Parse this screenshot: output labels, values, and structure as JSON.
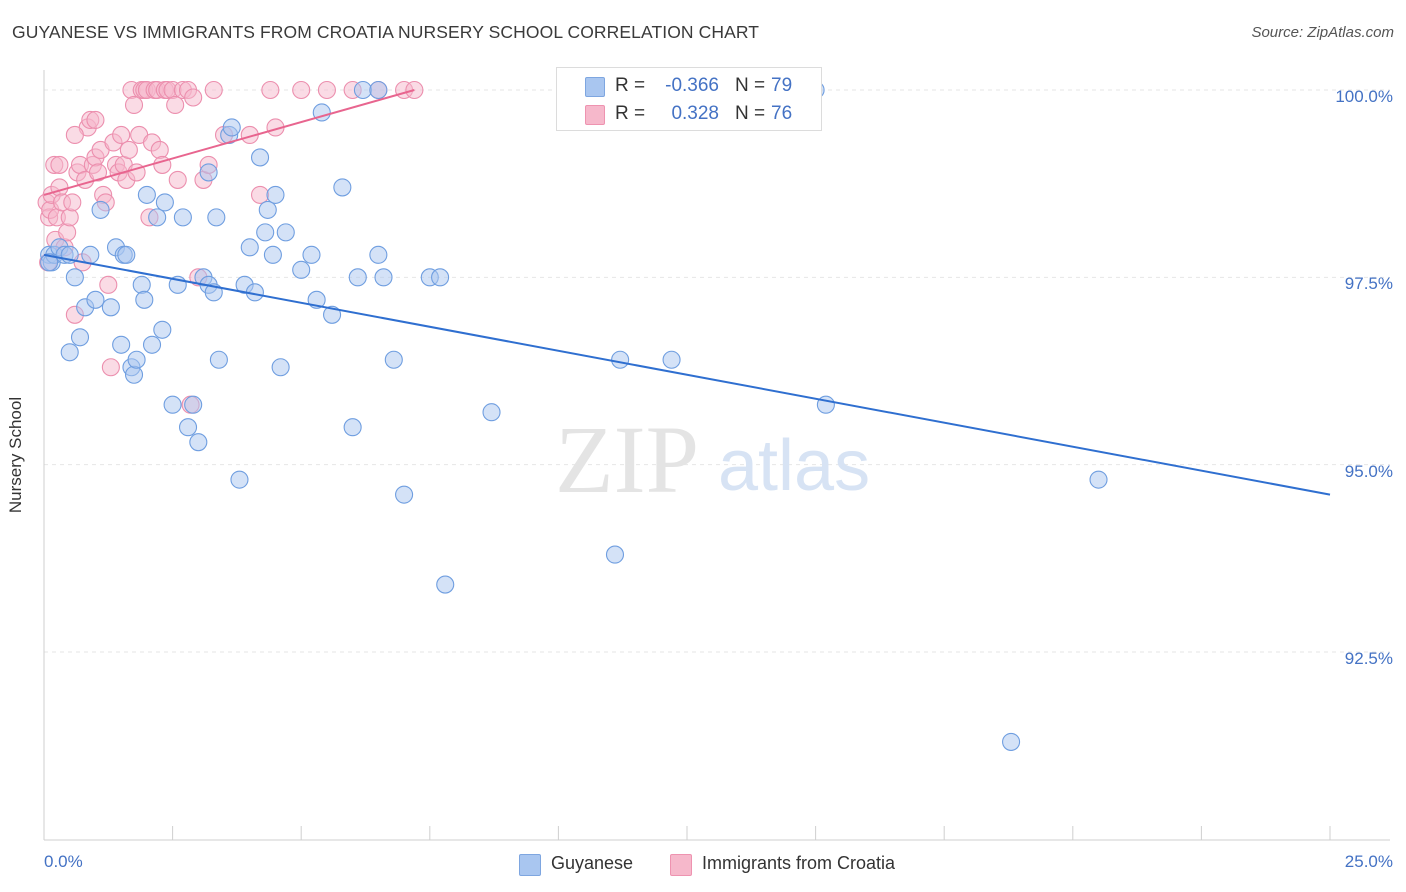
{
  "title": "GUYANESE VS IMMIGRANTS FROM CROATIA NURSERY SCHOOL CORRELATION CHART",
  "source": "Source: ZipAtlas.com",
  "watermark": {
    "zip": "ZIP",
    "atlas": "atlas"
  },
  "legend": {
    "r_label": "R =",
    "n_label": "N =",
    "rows": [
      {
        "r": "-0.366",
        "n": "79",
        "color": "#a9c6f0"
      },
      {
        "r": "0.328",
        "n": "76",
        "color": "#f6b8cb"
      }
    ]
  },
  "colors": {
    "blue_fill": "#a9c6f0",
    "blue_line": "#2f6fd0",
    "pink_fill": "#f6b8cb",
    "pink_line": "#e8658f",
    "tick_text": "#4472c4",
    "grid": "#e6e6e6"
  },
  "chart_data": {
    "type": "scatter",
    "title": "GUYANESE VS IMMIGRANTS FROM CROATIA NURSERY SCHOOL CORRELATION CHART",
    "xlabel": "",
    "ylabel": "Nursery School",
    "xlim": [
      0,
      25
    ],
    "ylim": [
      90.0,
      100.3
    ],
    "x_tick_labels": [
      {
        "value": 0,
        "label": "0.0%"
      },
      {
        "value": 25,
        "label": "25.0%"
      }
    ],
    "y_tick_labels": [
      {
        "value": 100,
        "label": "100.0%"
      },
      {
        "value": 97.5,
        "label": "97.5%"
      },
      {
        "value": 95,
        "label": "95.0%"
      },
      {
        "value": 92.5,
        "label": "92.5%"
      }
    ],
    "grid": true,
    "legend_position": "top-center",
    "series": [
      {
        "name": "Guyanese",
        "color": "#a9c6f0",
        "trend": {
          "x": [
            0,
            25
          ],
          "y": [
            97.8,
            94.6
          ]
        },
        "points": [
          [
            0.1,
            97.8
          ],
          [
            0.15,
            97.7
          ],
          [
            0.2,
            97.8
          ],
          [
            0.3,
            97.9
          ],
          [
            0.4,
            97.8
          ],
          [
            0.5,
            97.8
          ],
          [
            0.5,
            96.5
          ],
          [
            0.6,
            97.5
          ],
          [
            0.7,
            96.7
          ],
          [
            0.8,
            97.1
          ],
          [
            0.9,
            97.8
          ],
          [
            1.0,
            97.2
          ],
          [
            1.1,
            98.4
          ],
          [
            1.3,
            97.1
          ],
          [
            1.4,
            97.9
          ],
          [
            1.5,
            96.6
          ],
          [
            1.55,
            97.8
          ],
          [
            1.6,
            97.8
          ],
          [
            1.7,
            96.3
          ],
          [
            1.75,
            96.2
          ],
          [
            1.8,
            96.4
          ],
          [
            1.9,
            97.4
          ],
          [
            1.95,
            97.2
          ],
          [
            2.0,
            98.6
          ],
          [
            2.1,
            96.6
          ],
          [
            2.2,
            98.3
          ],
          [
            2.3,
            96.8
          ],
          [
            2.35,
            98.5
          ],
          [
            2.5,
            95.8
          ],
          [
            2.6,
            97.4
          ],
          [
            2.7,
            98.3
          ],
          [
            2.8,
            95.5
          ],
          [
            2.9,
            95.8
          ],
          [
            3.0,
            95.3
          ],
          [
            3.1,
            97.5
          ],
          [
            3.2,
            97.4
          ],
          [
            3.2,
            98.9
          ],
          [
            3.3,
            97.3
          ],
          [
            3.35,
            98.3
          ],
          [
            3.4,
            96.4
          ],
          [
            3.6,
            99.4
          ],
          [
            3.65,
            99.5
          ],
          [
            3.8,
            94.8
          ],
          [
            3.9,
            97.4
          ],
          [
            4.0,
            97.9
          ],
          [
            4.1,
            97.3
          ],
          [
            4.2,
            99.1
          ],
          [
            4.3,
            98.1
          ],
          [
            4.35,
            98.4
          ],
          [
            4.45,
            97.8
          ],
          [
            4.5,
            98.6
          ],
          [
            4.6,
            96.3
          ],
          [
            4.7,
            98.1
          ],
          [
            5.0,
            97.6
          ],
          [
            5.2,
            97.8
          ],
          [
            5.3,
            97.2
          ],
          [
            5.4,
            99.7
          ],
          [
            5.6,
            97.0
          ],
          [
            5.8,
            98.7
          ],
          [
            6.0,
            95.5
          ],
          [
            6.1,
            97.5
          ],
          [
            6.2,
            100.0
          ],
          [
            6.5,
            100.0
          ],
          [
            6.5,
            97.8
          ],
          [
            6.6,
            97.5
          ],
          [
            6.8,
            96.4
          ],
          [
            7.0,
            94.6
          ],
          [
            7.5,
            97.5
          ],
          [
            7.7,
            97.5
          ],
          [
            7.8,
            93.4
          ],
          [
            8.7,
            95.7
          ],
          [
            11.1,
            93.8
          ],
          [
            11.2,
            96.4
          ],
          [
            12.2,
            96.4
          ],
          [
            15.0,
            100.0
          ],
          [
            15.2,
            95.8
          ],
          [
            18.8,
            91.3
          ],
          [
            20.5,
            94.8
          ],
          [
            0.1,
            97.7
          ]
        ]
      },
      {
        "name": "Immigrants from Croatia",
        "color": "#f6b8cb",
        "trend": {
          "x": [
            0,
            7.2
          ],
          "y": [
            98.6,
            100.0
          ]
        },
        "points": [
          [
            0.05,
            98.5
          ],
          [
            0.08,
            97.7
          ],
          [
            0.1,
            98.3
          ],
          [
            0.12,
            98.4
          ],
          [
            0.15,
            98.6
          ],
          [
            0.2,
            99.0
          ],
          [
            0.22,
            98.0
          ],
          [
            0.25,
            98.3
          ],
          [
            0.3,
            98.7
          ],
          [
            0.35,
            98.5
          ],
          [
            0.4,
            97.9
          ],
          [
            0.45,
            98.1
          ],
          [
            0.5,
            98.3
          ],
          [
            0.55,
            98.5
          ],
          [
            0.6,
            97.0
          ],
          [
            0.65,
            98.9
          ],
          [
            0.7,
            99.0
          ],
          [
            0.75,
            97.7
          ],
          [
            0.8,
            98.8
          ],
          [
            0.85,
            99.5
          ],
          [
            0.9,
            99.6
          ],
          [
            0.95,
            99.0
          ],
          [
            1.0,
            99.1
          ],
          [
            1.05,
            98.9
          ],
          [
            1.1,
            99.2
          ],
          [
            1.15,
            98.6
          ],
          [
            1.2,
            98.5
          ],
          [
            1.25,
            97.4
          ],
          [
            1.3,
            96.3
          ],
          [
            1.35,
            99.3
          ],
          [
            1.4,
            99.0
          ],
          [
            1.45,
            98.9
          ],
          [
            1.5,
            99.4
          ],
          [
            1.55,
            99.0
          ],
          [
            1.6,
            98.8
          ],
          [
            1.65,
            99.2
          ],
          [
            1.7,
            100.0
          ],
          [
            1.75,
            99.8
          ],
          [
            1.8,
            98.9
          ],
          [
            1.85,
            99.4
          ],
          [
            1.9,
            100.0
          ],
          [
            1.95,
            100.0
          ],
          [
            2.0,
            100.0
          ],
          [
            2.05,
            98.3
          ],
          [
            2.1,
            99.3
          ],
          [
            2.15,
            100.0
          ],
          [
            2.2,
            100.0
          ],
          [
            2.25,
            99.2
          ],
          [
            2.3,
            99.0
          ],
          [
            2.35,
            100.0
          ],
          [
            2.4,
            100.0
          ],
          [
            2.5,
            100.0
          ],
          [
            2.55,
            99.8
          ],
          [
            2.6,
            98.8
          ],
          [
            2.7,
            100.0
          ],
          [
            2.8,
            100.0
          ],
          [
            2.85,
            95.8
          ],
          [
            2.9,
            99.9
          ],
          [
            3.0,
            97.5
          ],
          [
            3.1,
            98.8
          ],
          [
            3.2,
            99.0
          ],
          [
            3.3,
            100.0
          ],
          [
            3.5,
            99.4
          ],
          [
            4.0,
            99.4
          ],
          [
            4.2,
            98.6
          ],
          [
            4.4,
            100.0
          ],
          [
            4.5,
            99.5
          ],
          [
            5.0,
            100.0
          ],
          [
            5.5,
            100.0
          ],
          [
            6.0,
            100.0
          ],
          [
            6.5,
            100.0
          ],
          [
            7.0,
            100.0
          ],
          [
            7.2,
            100.0
          ],
          [
            0.3,
            99.0
          ],
          [
            0.6,
            99.4
          ],
          [
            1.0,
            99.6
          ]
        ]
      }
    ]
  },
  "bottom_legend": [
    {
      "label": "Guyanese",
      "color": "#a9c6f0"
    },
    {
      "label": "Immigrants from Croatia",
      "color": "#f6b8cb"
    }
  ]
}
